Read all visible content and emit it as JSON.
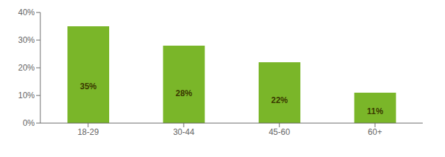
{
  "chart_data": {
    "type": "bar",
    "categories": [
      "18-29",
      "30-44",
      "45-60",
      "60+"
    ],
    "values": [
      35,
      28,
      22,
      11
    ],
    "value_labels": [
      "35%",
      "28%",
      "22%",
      "11%"
    ],
    "data_labels": true,
    "color": "#7ab629",
    "ylim": [
      0,
      40
    ],
    "yticks": [
      {
        "value": 0,
        "label": "0%"
      },
      {
        "value": 10,
        "label": "10%"
      },
      {
        "value": 20,
        "label": "20%"
      },
      {
        "value": 30,
        "label": "30%"
      },
      {
        "value": 40,
        "label": "40%"
      }
    ],
    "grid": false
  }
}
